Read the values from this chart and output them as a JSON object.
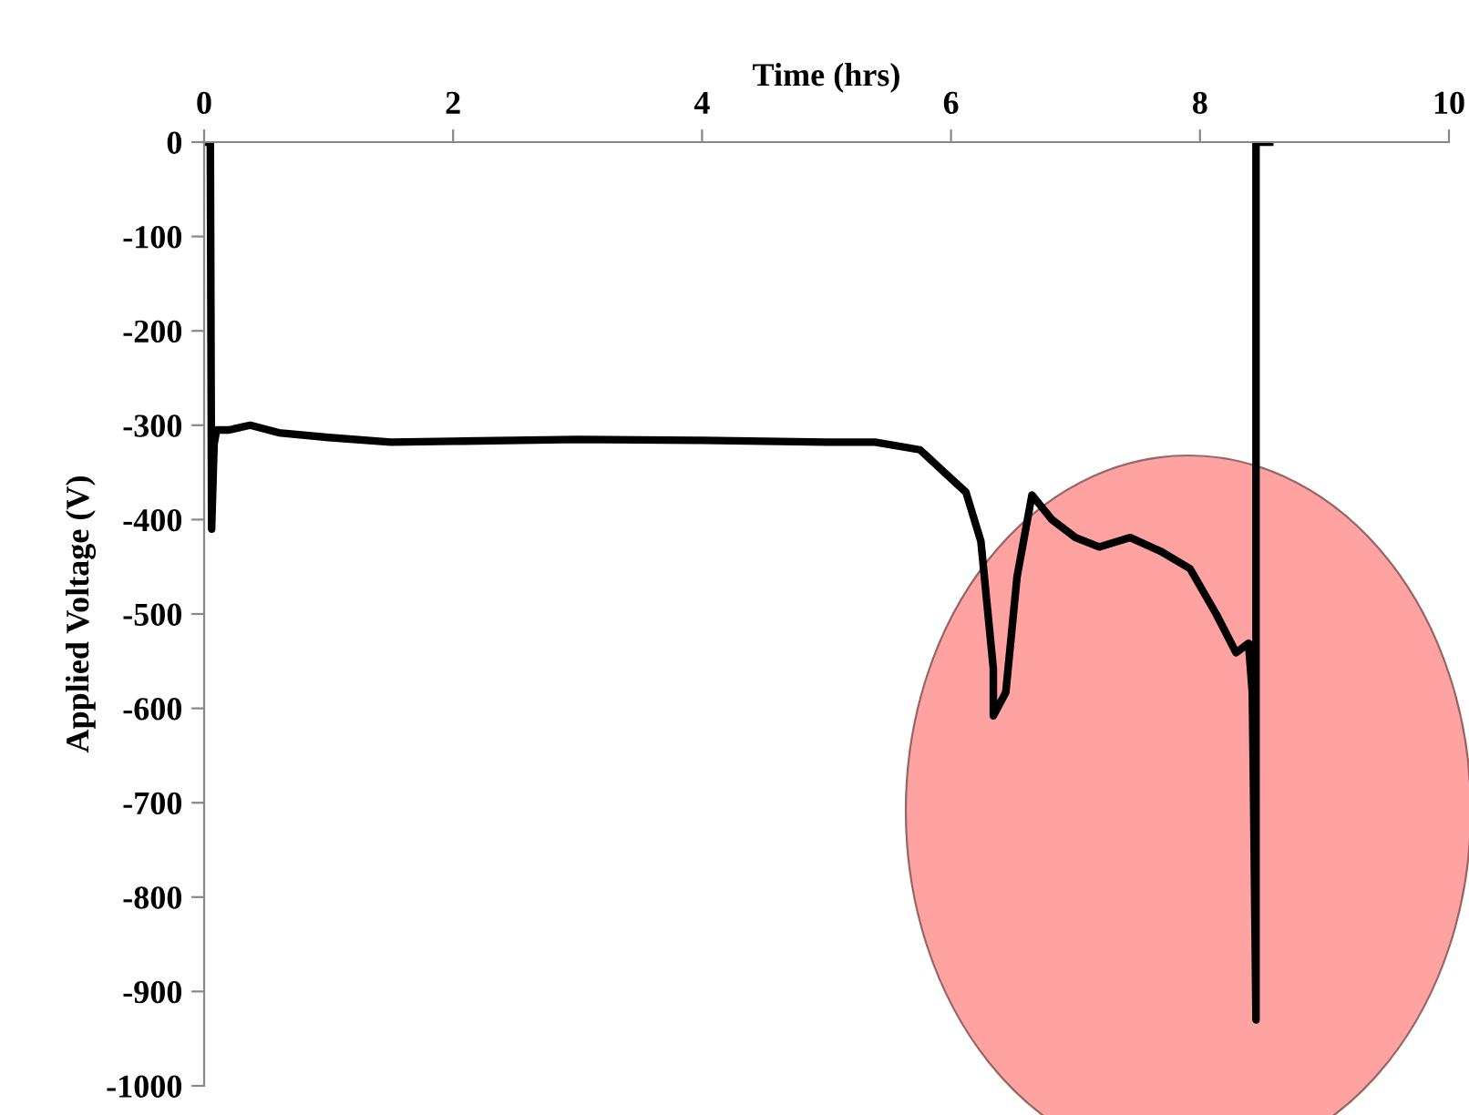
{
  "chart_data": {
    "type": "line",
    "xlabel": "Time (hrs)",
    "ylabel": "Applied Voltage (V)",
    "xlim": [
      0,
      10
    ],
    "xticks": [
      0,
      2,
      4,
      6,
      8,
      10
    ],
    "ylim": [
      -1000,
      0
    ],
    "yticks": [
      0,
      -100,
      -200,
      -300,
      -400,
      -500,
      -600,
      -700,
      -800,
      -900,
      -1000
    ],
    "grid": false,
    "marker": "none",
    "line_style": "solid",
    "series": [
      {
        "color": "#000000",
        "x": [
          0.0,
          0.05,
          0.06,
          0.08,
          0.1,
          0.2,
          0.37,
          0.6,
          1.0,
          1.5,
          2.0,
          3.0,
          4.0,
          5.0,
          5.39,
          5.75,
          6.12,
          6.24,
          6.34,
          6.34,
          6.44,
          6.53,
          6.65,
          6.81,
          7.0,
          7.19,
          7.44,
          7.69,
          7.92,
          8.13,
          8.29,
          8.39,
          8.42,
          8.43,
          8.45,
          8.45,
          8.56
        ],
        "values": [
          0,
          0,
          -410,
          -320,
          -305,
          -305,
          -300,
          -308,
          -313,
          -318,
          -317,
          -315,
          -316,
          -318,
          -318,
          -326,
          -371,
          -423,
          -558,
          -608,
          -583,
          -461,
          -374,
          -400,
          -419,
          -429,
          -419,
          -434,
          -452,
          -500,
          -541,
          -531,
          -583,
          -685,
          -930,
          0,
          0
        ]
      }
    ]
  }
}
